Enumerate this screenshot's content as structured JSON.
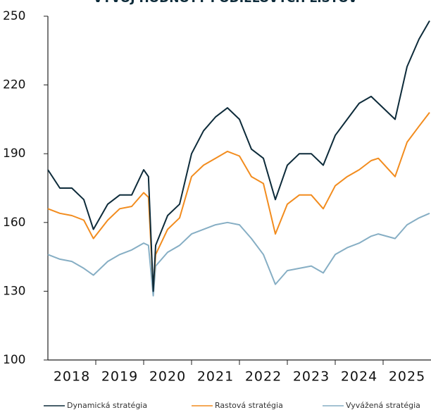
{
  "chart_data": {
    "type": "line",
    "title": "VÝVOJ HODNOTY PODIELOVÝCH LISTOV",
    "x": [
      2018,
      2018.25,
      2018.5,
      2018.75,
      2018.95,
      2019.25,
      2019.5,
      2019.75,
      2020,
      2020.1,
      2020.2,
      2020.25,
      2020.5,
      2020.75,
      2021,
      2021.25,
      2021.5,
      2021.75,
      2022,
      2022.25,
      2022.5,
      2022.75,
      2023,
      2023.25,
      2023.5,
      2023.75,
      2024,
      2024.25,
      2024.5,
      2024.75,
      2024.9,
      2025.25,
      2025.5,
      2025.75,
      2025.97
    ],
    "series": [
      {
        "name": "Dynamická stratégia",
        "color": "#0d2b3a",
        "values": [
          183,
          175,
          175,
          170,
          157,
          168,
          172,
          172,
          183,
          180,
          130,
          150,
          163,
          168,
          190,
          200,
          206,
          210,
          205,
          192,
          188,
          170,
          185,
          190,
          190,
          185,
          198,
          205,
          212,
          215,
          212,
          205,
          228,
          240,
          248
        ]
      },
      {
        "name": "Rastová stratégia",
        "color": "#f28c1e",
        "values": [
          166,
          164,
          163,
          161,
          153,
          161,
          166,
          167,
          173,
          171,
          131,
          146,
          157,
          162,
          180,
          185,
          188,
          191,
          189,
          180,
          177,
          155,
          168,
          172,
          172,
          166,
          176,
          180,
          183,
          187,
          188,
          180,
          195,
          202,
          208
        ]
      },
      {
        "name": "Vyvážená stratégia",
        "color": "#86aec4",
        "values": [
          146,
          144,
          143,
          140,
          137,
          143,
          146,
          148,
          151,
          150,
          128,
          141,
          147,
          150,
          155,
          157,
          159,
          160,
          159,
          153,
          146,
          133,
          139,
          140,
          141,
          138,
          146,
          149,
          151,
          154,
          155,
          153,
          159,
          162,
          164
        ]
      }
    ],
    "xlim": [
      2018,
      2026
    ],
    "xticks": [
      {
        "value": 2018.5,
        "label": "2018"
      },
      {
        "value": 2019.5,
        "label": "2019"
      },
      {
        "value": 2020.5,
        "label": "2020"
      },
      {
        "value": 2021.5,
        "label": "2021"
      },
      {
        "value": 2022.5,
        "label": "2022"
      },
      {
        "value": 2023.5,
        "label": "2023"
      },
      {
        "value": 2024.5,
        "label": "2024"
      },
      {
        "value": 2025.5,
        "label": "2025"
      }
    ],
    "xminor_ticks": [
      2019,
      2020,
      2021,
      2022,
      2023,
      2024,
      2025
    ],
    "ylim": [
      100,
      250
    ],
    "yticks": [
      100,
      130,
      160,
      190,
      220,
      250
    ],
    "legend": "bottom"
  }
}
